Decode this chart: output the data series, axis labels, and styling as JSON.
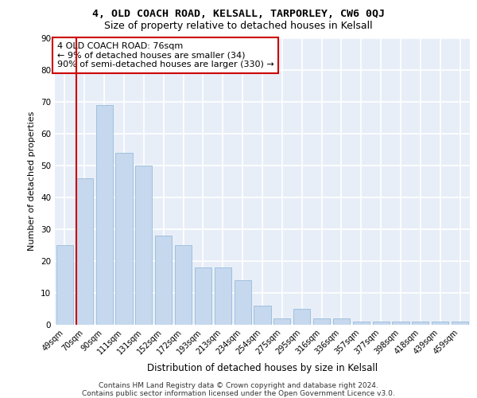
{
  "title1": "4, OLD COACH ROAD, KELSALL, TARPORLEY, CW6 0QJ",
  "title2": "Size of property relative to detached houses in Kelsall",
  "xlabel": "Distribution of detached houses by size in Kelsall",
  "ylabel": "Number of detached properties",
  "categories": [
    "49sqm",
    "70sqm",
    "90sqm",
    "111sqm",
    "131sqm",
    "152sqm",
    "172sqm",
    "193sqm",
    "213sqm",
    "234sqm",
    "254sqm",
    "275sqm",
    "295sqm",
    "316sqm",
    "336sqm",
    "357sqm",
    "377sqm",
    "398sqm",
    "418sqm",
    "439sqm",
    "459sqm"
  ],
  "values": [
    25,
    46,
    69,
    54,
    50,
    28,
    25,
    18,
    18,
    14,
    6,
    2,
    5,
    2,
    2,
    1,
    1,
    1,
    1,
    1,
    1
  ],
  "bar_color": "#c5d8ee",
  "bar_edge_color": "#8ab4d4",
  "vline_color": "#cc0000",
  "vline_x": 0.6,
  "annotation_line1": "4 OLD COACH ROAD: 76sqm",
  "annotation_line2": "← 9% of detached houses are smaller (34)",
  "annotation_line3": "90% of semi-detached houses are larger (330) →",
  "annotation_box_facecolor": "#ffffff",
  "annotation_box_edgecolor": "#cc0000",
  "ylim": [
    0,
    90
  ],
  "yticks": [
    0,
    10,
    20,
    30,
    40,
    50,
    60,
    70,
    80,
    90
  ],
  "footer_line1": "Contains HM Land Registry data © Crown copyright and database right 2024.",
  "footer_line2": "Contains public sector information licensed under the Open Government Licence v3.0.",
  "bg_color": "#e8eef8",
  "grid_color": "#ffffff",
  "title1_fontsize": 9.5,
  "title2_fontsize": 9,
  "ylabel_fontsize": 8,
  "xlabel_fontsize": 8.5,
  "tick_fontsize": 7,
  "annotation_fontsize": 8,
  "footer_fontsize": 6.5
}
